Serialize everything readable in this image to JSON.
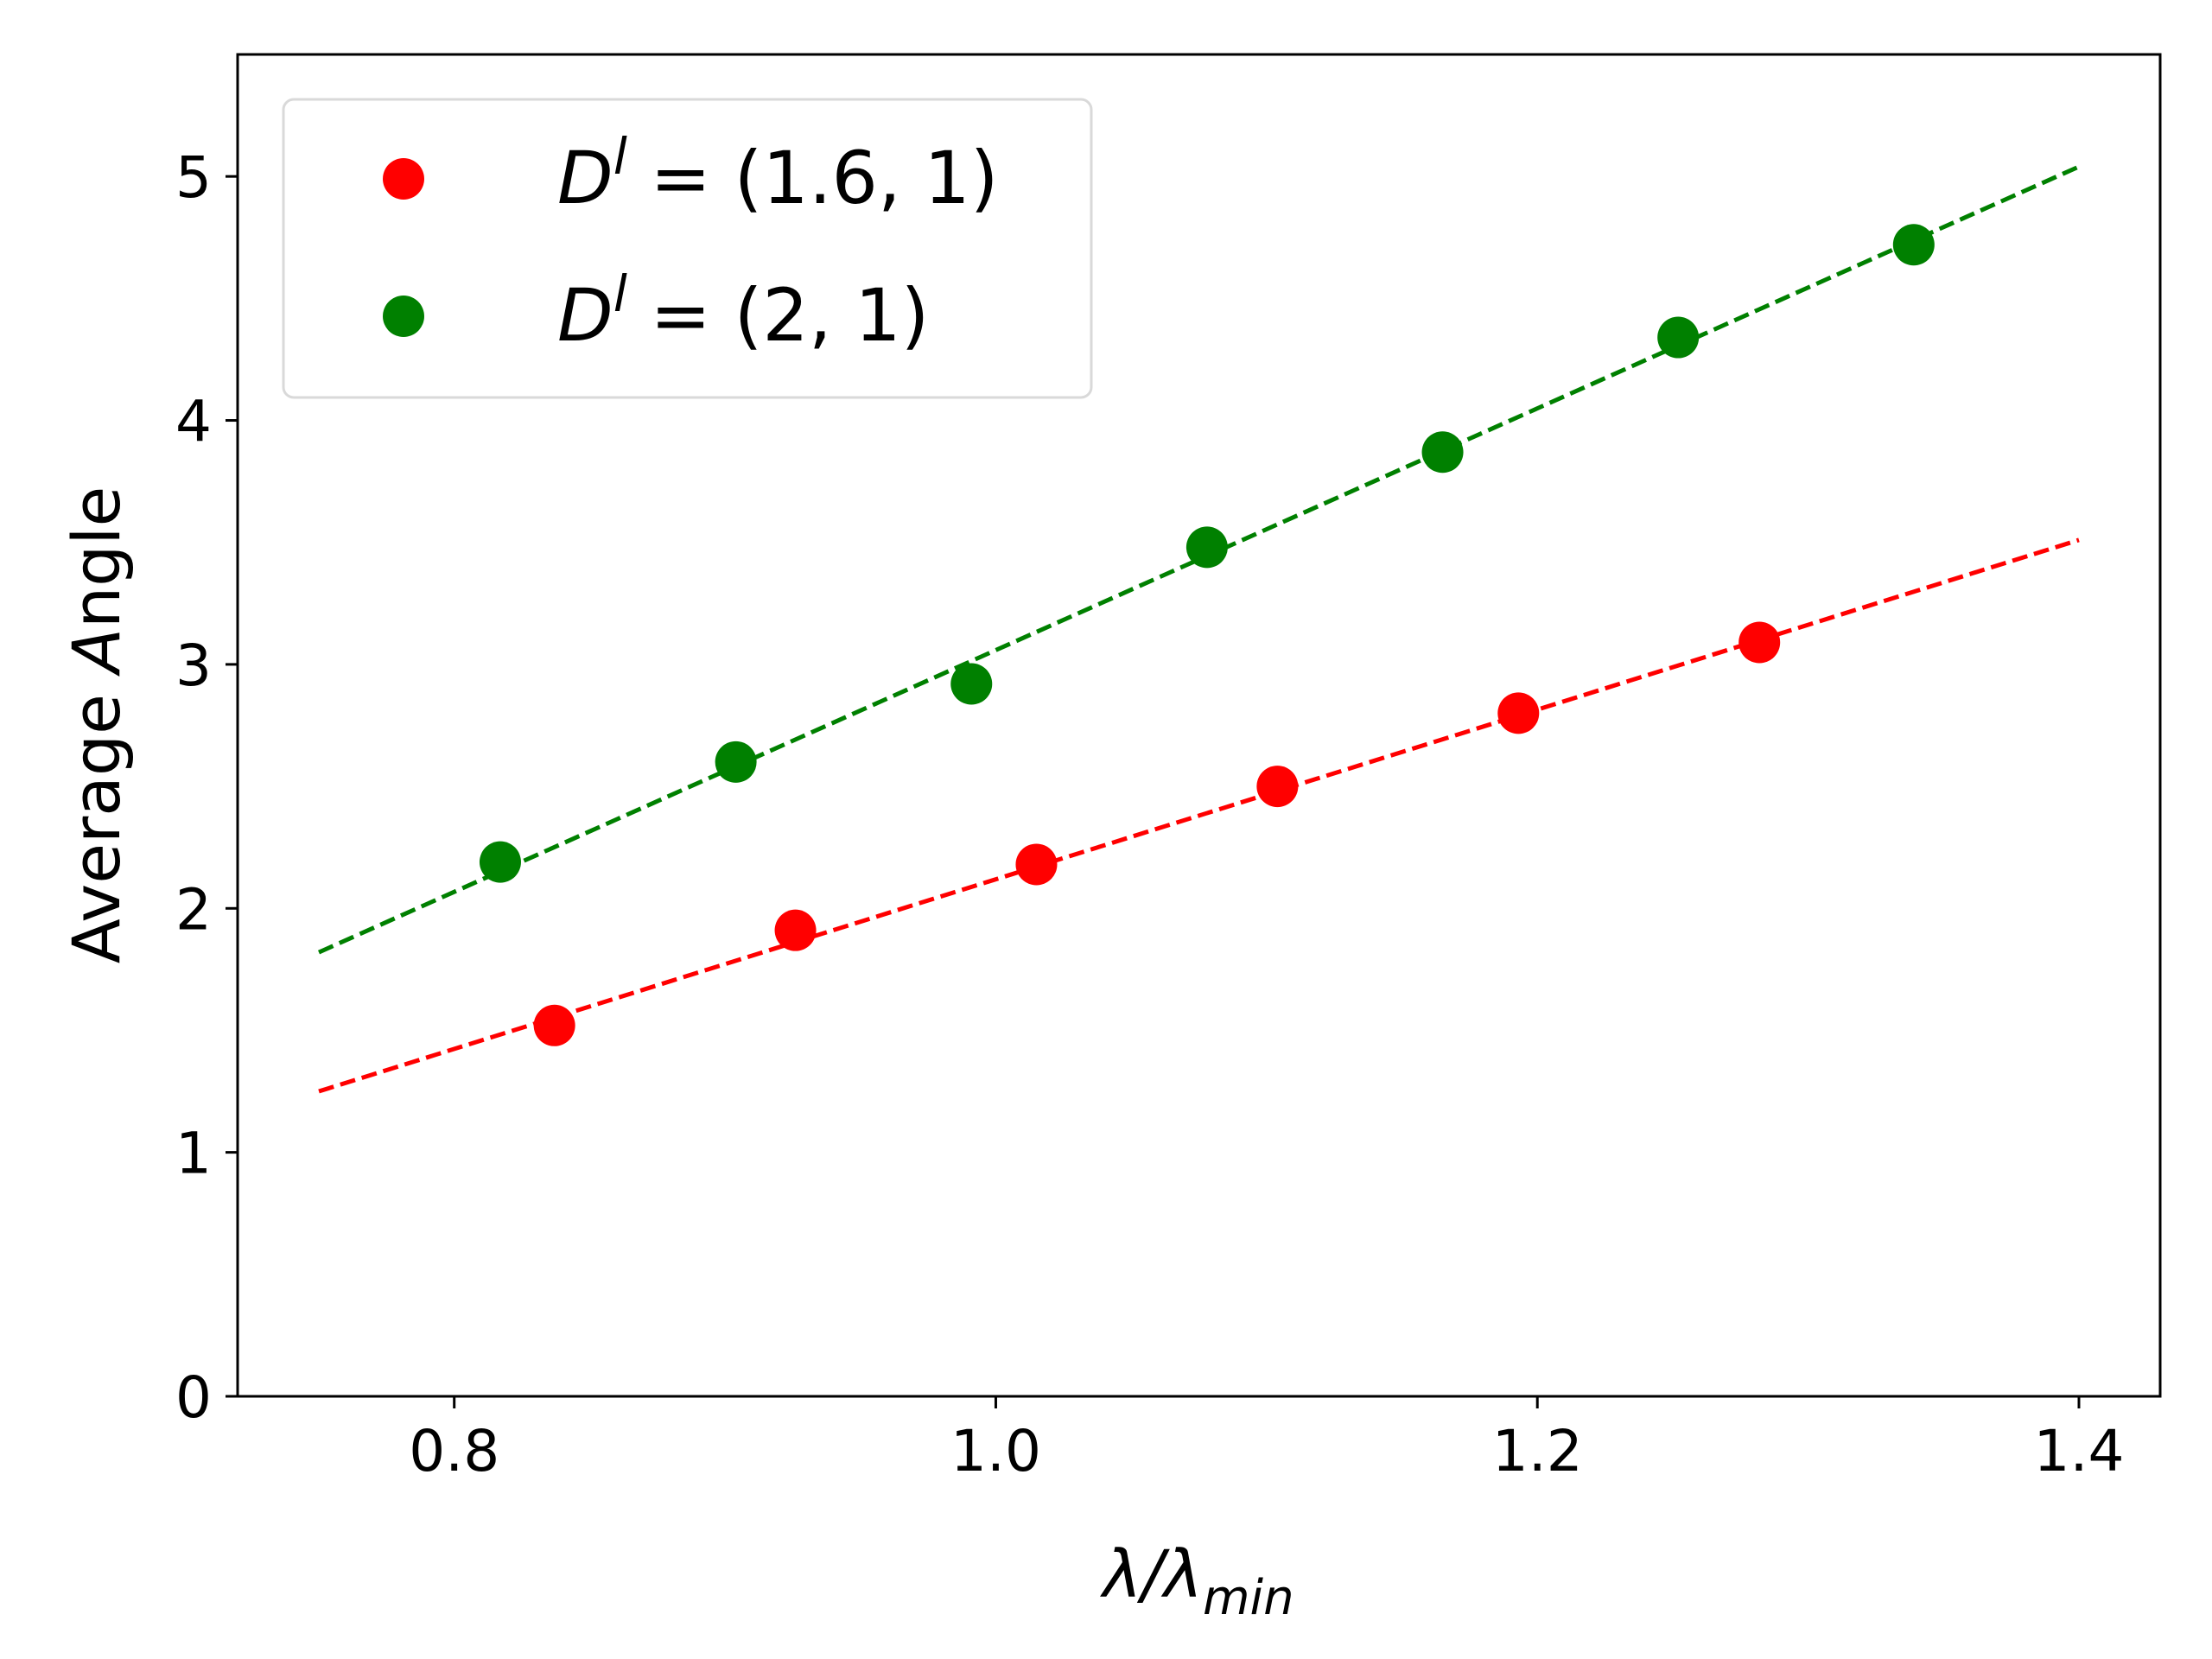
{
  "chart_data": {
    "type": "scatter",
    "xlabel": "λ/λmin",
    "xlabel_main": "λ/λ",
    "xlabel_sub": "min",
    "ylabel": "Average Angle",
    "ylabel_prefix": "Average ",
    "ylabel_italic": "A",
    "ylabel_suffix": "ngle",
    "xlim": [
      0.72,
      1.43
    ],
    "ylim": [
      0,
      5.5
    ],
    "xticks": [
      0.8,
      1.0,
      1.2,
      1.4
    ],
    "xtick_labels": [
      "0.8",
      "1.0",
      "1.2",
      "1.4"
    ],
    "yticks": [
      0,
      1,
      2,
      3,
      4,
      5
    ],
    "ytick_labels": [
      "0",
      "1",
      "2",
      "3",
      "4",
      "5"
    ],
    "grid": false,
    "legend_position": "top-left",
    "series": [
      {
        "name": "D^l = (1.6, 1)",
        "legend_math": "D",
        "legend_sup": "l",
        "legend_rest": " = (1.6, 1)",
        "color": "#ff0000",
        "x": [
          0.837,
          0.926,
          1.015,
          1.104,
          1.193,
          1.282
        ],
        "y": [
          1.52,
          1.91,
          2.18,
          2.5,
          2.8,
          3.09
        ],
        "fit_x": [
          0.75,
          1.4
        ],
        "fit_y": [
          1.25,
          3.51
        ]
      },
      {
        "name": "D^l = (2, 1)",
        "legend_math": "D",
        "legend_sup": "l",
        "legend_rest": " = (2, 1)",
        "color": "#008000",
        "x": [
          0.817,
          0.904,
          0.991,
          1.078,
          1.165,
          1.252,
          1.339
        ],
        "y": [
          2.19,
          2.6,
          2.92,
          3.48,
          3.87,
          4.34,
          4.72
        ],
        "fit_x": [
          0.75,
          1.4
        ],
        "fit_y": [
          1.82,
          5.04
        ]
      }
    ]
  }
}
